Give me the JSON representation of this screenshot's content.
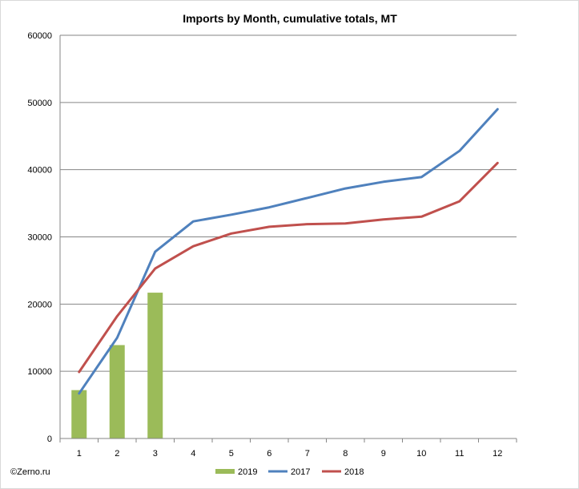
{
  "chart_data": {
    "type": "bar",
    "title": "Imports by Month, cumulative totals, MT",
    "xlabel": "",
    "ylabel": "",
    "categories": [
      "1",
      "2",
      "3",
      "4",
      "5",
      "6",
      "7",
      "8",
      "9",
      "10",
      "11",
      "12"
    ],
    "ylim": [
      0,
      60000
    ],
    "yticks": [
      "0",
      "10000",
      "20000",
      "30000",
      "40000",
      "50000",
      "60000"
    ],
    "grid": true,
    "legend_position": "bottom",
    "series": [
      {
        "name": "2019",
        "type": "bar",
        "color": "#9bbb59",
        "values": [
          7200,
          13900,
          21700,
          null,
          null,
          null,
          null,
          null,
          null,
          null,
          null,
          null
        ]
      },
      {
        "name": "2017",
        "type": "line",
        "color": "#4f81bd",
        "values": [
          6700,
          15000,
          27800,
          32300,
          33300,
          34400,
          35800,
          37200,
          38200,
          38900,
          42800,
          49000
        ]
      },
      {
        "name": "2018",
        "type": "line",
        "color": "#c0504d",
        "values": [
          9900,
          18200,
          25300,
          28600,
          30500,
          31500,
          31900,
          32000,
          32600,
          33000,
          35300,
          41000
        ]
      }
    ]
  },
  "credit": "©Zerno.ru"
}
